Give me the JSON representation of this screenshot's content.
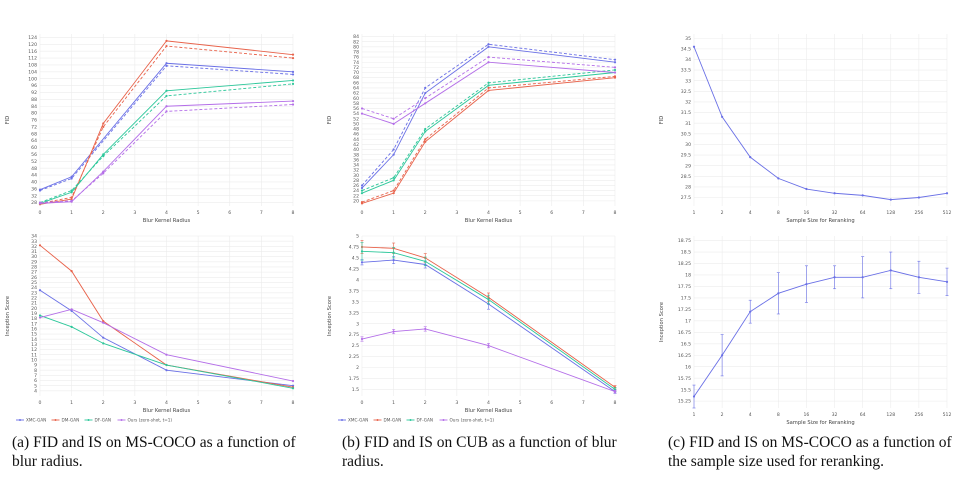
{
  "captions": {
    "a": "(a) FID and IS on MS-COCO as a function of blur radius.",
    "b": "(b) FID and IS on CUB as a function of blur radius.",
    "c": "(c) FID and IS on MS-COCO as a function of the sample size used for reranking."
  },
  "colors": {
    "blue": "#6a70e6",
    "red": "#e8624a",
    "green": "#2cc79a",
    "purple": "#b46ee8"
  },
  "chart_data": [
    {
      "id": "a-fid",
      "type": "line",
      "xlabel": "Blur Kernel Radius",
      "ylabel": "FID",
      "xlim": [
        0,
        8
      ],
      "ylim": [
        26,
        126
      ],
      "xticks": [
        0,
        1,
        2,
        3,
        4,
        5,
        6,
        7,
        8
      ],
      "yticks": [
        28,
        32,
        36,
        40,
        44,
        48,
        52,
        56,
        60,
        64,
        68,
        72,
        76,
        80,
        84,
        88,
        92,
        96,
        100,
        104,
        108,
        112,
        116,
        120,
        124
      ],
      "series": [
        {
          "color": "blue",
          "x": [
            0,
            1,
            4,
            8
          ],
          "y": [
            35.5,
            43,
            109,
            104
          ]
        },
        {
          "color": "blue",
          "dash": true,
          "x": [
            0,
            1,
            4,
            8
          ],
          "y": [
            35,
            42,
            107.5,
            102.5
          ]
        },
        {
          "color": "red",
          "x": [
            0,
            1,
            2,
            4,
            8
          ],
          "y": [
            27,
            30,
            74,
            122,
            114
          ]
        },
        {
          "color": "red",
          "dash": true,
          "x": [
            0,
            1,
            2,
            4,
            8
          ],
          "y": [
            27.5,
            31,
            72,
            119,
            112
          ]
        },
        {
          "color": "green",
          "x": [
            0,
            1,
            2,
            4,
            8
          ],
          "y": [
            27.5,
            34,
            56,
            93,
            99
          ]
        },
        {
          "color": "green",
          "dash": true,
          "x": [
            0,
            1,
            2,
            4,
            8
          ],
          "y": [
            28,
            35,
            55,
            90,
            97
          ]
        },
        {
          "color": "purple",
          "x": [
            0,
            1,
            2,
            4,
            8
          ],
          "y": [
            27.5,
            28.5,
            46,
            84,
            87
          ]
        },
        {
          "color": "purple",
          "dash": true,
          "x": [
            0,
            1,
            2,
            4,
            8
          ],
          "y": [
            28,
            29,
            45,
            81,
            85
          ]
        }
      ]
    },
    {
      "id": "a-is",
      "type": "line",
      "xlabel": "Blur Kernel Radius",
      "ylabel": "Inception Score",
      "xlim": [
        0,
        8
      ],
      "ylim": [
        3,
        34
      ],
      "xticks": [
        0,
        1,
        2,
        3,
        4,
        5,
        6,
        7,
        8
      ],
      "yticks": [
        4,
        5,
        6,
        7,
        8,
        9,
        10,
        11,
        12,
        13,
        14,
        15,
        16,
        17,
        18,
        19,
        20,
        21,
        22,
        23,
        24,
        25,
        26,
        27,
        28,
        29,
        30,
        31,
        32,
        33,
        34
      ],
      "legend": [
        "XMC-GAN",
        "DM-GAN",
        "DF-GAN",
        "Ours (zero-shot, t=1)"
      ],
      "series": [
        {
          "color": "blue",
          "x": [
            0,
            1,
            2,
            4,
            8
          ],
          "y": [
            23.5,
            19.5,
            14.3,
            8,
            5
          ]
        },
        {
          "color": "red",
          "x": [
            0,
            1,
            2,
            4,
            8
          ],
          "y": [
            32.2,
            27.2,
            17.5,
            9,
            4.7
          ]
        },
        {
          "color": "green",
          "x": [
            0,
            1,
            2,
            4,
            8
          ],
          "y": [
            18.6,
            16.4,
            13.2,
            9,
            4.5
          ]
        },
        {
          "color": "purple",
          "x": [
            0,
            1,
            2,
            4,
            8
          ],
          "y": [
            18.2,
            19.8,
            17.2,
            11,
            5.9
          ]
        }
      ]
    },
    {
      "id": "b-fid",
      "type": "line",
      "xlabel": "Blur Kernel Radius",
      "ylabel": "FID",
      "xlim": [
        0,
        8
      ],
      "ylim": [
        18,
        85
      ],
      "xticks": [
        0,
        1,
        2,
        3,
        4,
        5,
        6,
        7,
        8
      ],
      "yticks": [
        20,
        22,
        24,
        26,
        28,
        30,
        32,
        34,
        36,
        38,
        40,
        42,
        44,
        46,
        48,
        50,
        52,
        54,
        56,
        58,
        60,
        62,
        64,
        66,
        68,
        70,
        72,
        74,
        76,
        78,
        80,
        82,
        84
      ],
      "series": [
        {
          "color": "blue",
          "x": [
            0,
            1,
            2,
            4,
            8
          ],
          "y": [
            25,
            38,
            62,
            80,
            74
          ]
        },
        {
          "color": "blue",
          "dash": true,
          "x": [
            0,
            1,
            2,
            4,
            8
          ],
          "y": [
            26,
            40,
            64,
            81,
            75
          ]
        },
        {
          "color": "red",
          "x": [
            0,
            1,
            2,
            4,
            8
          ],
          "y": [
            19,
            23,
            43,
            63,
            68
          ]
        },
        {
          "color": "red",
          "dash": true,
          "x": [
            0,
            1,
            2,
            4,
            8
          ],
          "y": [
            19.5,
            24,
            44,
            64,
            68.5
          ]
        },
        {
          "color": "green",
          "x": [
            0,
            1,
            2,
            4,
            8
          ],
          "y": [
            23,
            28,
            47,
            65,
            70
          ]
        },
        {
          "color": "green",
          "dash": true,
          "x": [
            0,
            1,
            2,
            4,
            8
          ],
          "y": [
            24,
            29,
            48,
            66,
            71
          ]
        },
        {
          "color": "purple",
          "x": [
            0,
            1,
            2,
            4,
            8
          ],
          "y": [
            54,
            50,
            58,
            74,
            70
          ]
        },
        {
          "color": "purple",
          "dash": true,
          "x": [
            0,
            1,
            2,
            4,
            8
          ],
          "y": [
            56,
            52,
            60,
            76,
            72
          ]
        }
      ]
    },
    {
      "id": "b-is",
      "type": "line",
      "xlabel": "Blur Kernel Radius",
      "ylabel": "Inception Score",
      "xlim": [
        0,
        8
      ],
      "ylim": [
        1.35,
        5
      ],
      "xticks": [
        0,
        1,
        2,
        3,
        4,
        5,
        6,
        7,
        8
      ],
      "yticks": [
        1.5,
        1.75,
        2,
        2.25,
        2.5,
        2.75,
        3,
        3.25,
        3.5,
        3.75,
        4,
        4.25,
        4.5,
        4.75,
        5
      ],
      "tick_labels_y": [
        "1.5",
        "1.75",
        "2",
        "2.25",
        "2.5",
        "2.75",
        "3",
        "3.25",
        "3.5",
        "3.75",
        "4",
        "4.25",
        "4.5",
        "4.75",
        "5"
      ],
      "legend": [
        "XMC-GAN",
        "DM-GAN",
        "DF-GAN",
        "Ours (zero-shot, t=1)"
      ],
      "series": [
        {
          "color": "blue",
          "x": [
            0,
            1,
            2,
            4,
            8
          ],
          "y": [
            4.4,
            4.45,
            4.35,
            3.45,
            1.45
          ],
          "err": [
            0.06,
            0.08,
            0.08,
            0.12,
            0.04
          ]
        },
        {
          "color": "red",
          "x": [
            0,
            1,
            2,
            4,
            8
          ],
          "y": [
            4.75,
            4.72,
            4.5,
            3.6,
            1.55
          ],
          "err": [
            0.15,
            0.12,
            0.1,
            0.1,
            0.04
          ]
        },
        {
          "color": "green",
          "x": [
            0,
            1,
            2,
            4,
            8
          ],
          "y": [
            4.65,
            4.62,
            4.42,
            3.55,
            1.5
          ],
          "err": [
            0.2,
            0.12,
            0.1,
            0.1,
            0.04
          ]
        },
        {
          "color": "purple",
          "x": [
            0,
            1,
            2,
            4,
            8
          ],
          "y": [
            2.65,
            2.82,
            2.88,
            2.5,
            1.45
          ],
          "err": [
            0.05,
            0.05,
            0.05,
            0.05,
            0.03
          ]
        }
      ]
    },
    {
      "id": "c-fid",
      "type": "line",
      "xlabel": "Sample Size for Reranking",
      "ylabel": "FID",
      "xlim": [
        0,
        9
      ],
      "ylim": [
        27.1,
        35.2
      ],
      "xticks": [
        0,
        1,
        2,
        3,
        4,
        5,
        6,
        7,
        8,
        9
      ],
      "tick_labels_x": [
        "1",
        "2",
        "4",
        "8",
        "16",
        "32",
        "64",
        "128",
        "256",
        "512"
      ],
      "yticks": [
        27.5,
        28,
        28.5,
        29,
        29.5,
        30,
        30.5,
        31,
        31.5,
        32,
        32.5,
        33,
        33.5,
        34,
        34.5,
        35
      ],
      "tick_labels_y": [
        "27.5",
        "28",
        "28.5",
        "29",
        "29.5",
        "30",
        "30.5",
        "31",
        "31.5",
        "32",
        "32.5",
        "33",
        "33.5",
        "34",
        "34.5",
        "35"
      ],
      "series": [
        {
          "color": "blue",
          "x": [
            0,
            1,
            2,
            3,
            4,
            5,
            6,
            7,
            8,
            9
          ],
          "y": [
            34.6,
            31.3,
            29.4,
            28.4,
            27.9,
            27.7,
            27.6,
            27.4,
            27.5,
            27.7
          ]
        }
      ]
    },
    {
      "id": "c-is",
      "type": "line",
      "xlabel": "Sample Size for Reranking",
      "ylabel": "Inception Score",
      "xlim": [
        0,
        9
      ],
      "ylim": [
        15.1,
        18.85
      ],
      "xticks": [
        0,
        1,
        2,
        3,
        4,
        5,
        6,
        7,
        8,
        9
      ],
      "tick_labels_x": [
        "1",
        "2",
        "4",
        "8",
        "16",
        "32",
        "64",
        "128",
        "256",
        "512"
      ],
      "yticks": [
        15.25,
        15.5,
        15.75,
        16,
        16.25,
        16.5,
        16.75,
        17,
        17.25,
        17.5,
        17.75,
        18,
        18.25,
        18.5,
        18.75
      ],
      "tick_labels_y": [
        "15.25",
        "15.5",
        "15.75",
        "16",
        "16.25",
        "16.5",
        "16.75",
        "17",
        "17.25",
        "17.5",
        "17.75",
        "18",
        "18.25",
        "18.5",
        "18.75"
      ],
      "series": [
        {
          "color": "blue",
          "x": [
            0,
            1,
            2,
            3,
            4,
            5,
            6,
            7,
            8,
            9
          ],
          "y": [
            15.35,
            16.25,
            17.2,
            17.6,
            17.8,
            17.95,
            17.95,
            18.1,
            17.95,
            17.85
          ],
          "err": [
            0.25,
            0.45,
            0.25,
            0.45,
            0.4,
            0.25,
            0.45,
            0.4,
            0.35,
            0.3
          ]
        }
      ]
    }
  ]
}
